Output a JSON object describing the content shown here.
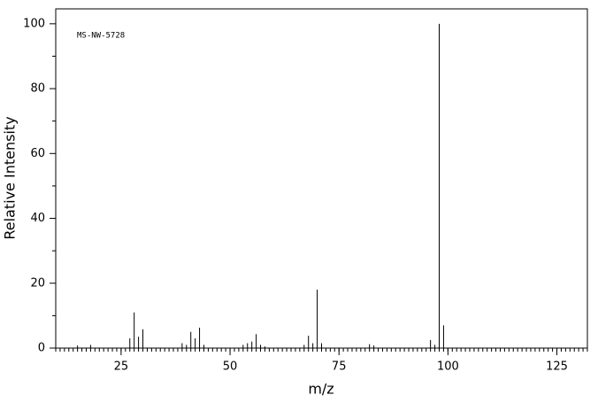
{
  "chart_data": {
    "type": "stem",
    "annotation": "MS-NW-5728",
    "x_label": "m/z",
    "y_label": "Relative Intensity",
    "x": [
      15,
      18,
      27,
      28,
      29,
      30,
      39,
      40,
      41,
      42,
      43,
      44,
      53,
      54,
      55,
      56,
      57,
      58,
      67,
      68,
      69,
      70,
      71,
      82,
      83,
      96,
      97,
      98,
      99
    ],
    "values": [
      0.8,
      1,
      3,
      11,
      3.5,
      5.8,
      1.5,
      1,
      5,
      3,
      6.3,
      1,
      1,
      1.5,
      2,
      4.3,
      1,
      0.5,
      1,
      3.8,
      1.5,
      18,
      1.5,
      1.2,
      0.8,
      2.5,
      1,
      100,
      7
    ],
    "color": "#000000",
    "xlim": [
      10,
      132
    ],
    "ylim": [
      0,
      104.6
    ],
    "xticks": [
      25,
      50,
      75,
      100,
      125
    ],
    "yticks": [
      0,
      20,
      40,
      60,
      80,
      100
    ]
  }
}
